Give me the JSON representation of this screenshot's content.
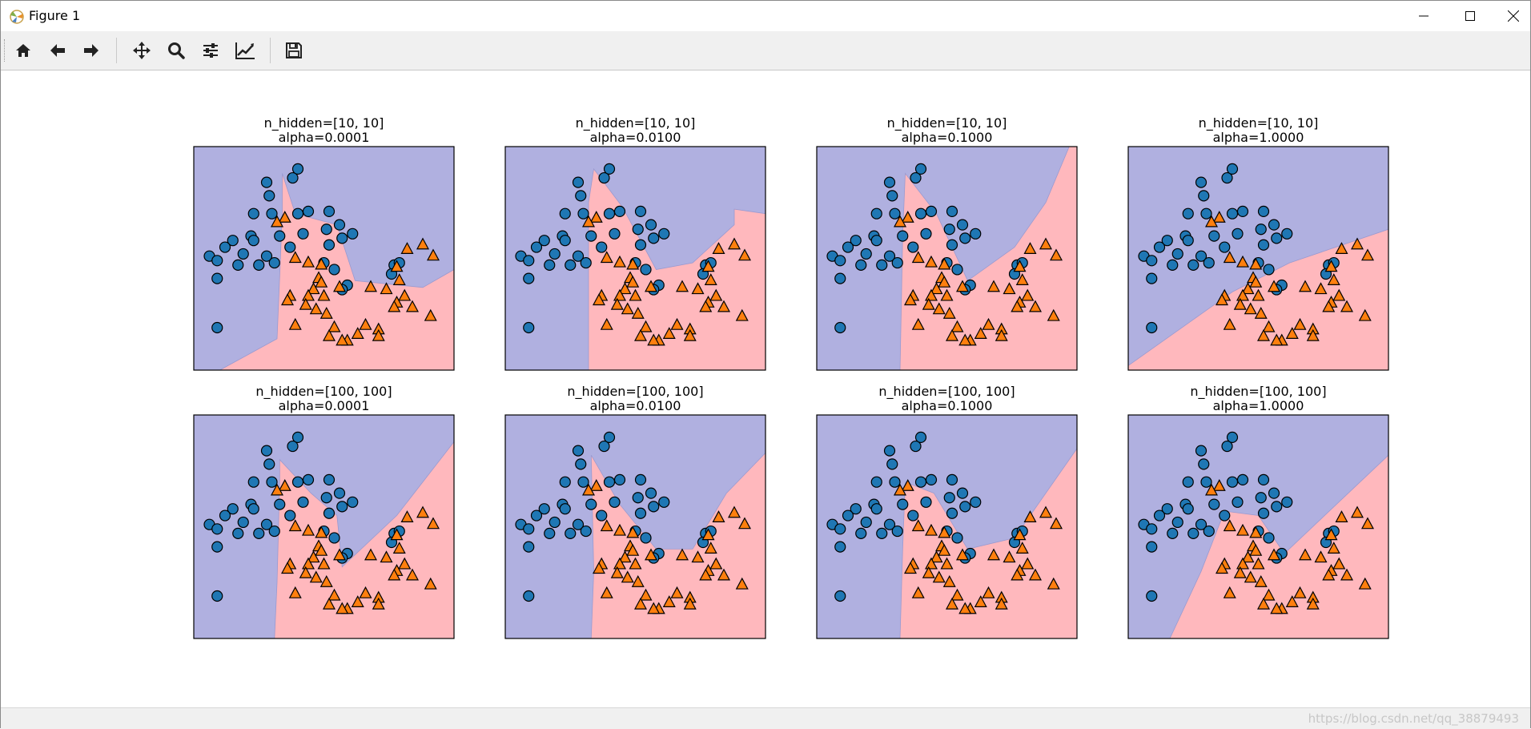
{
  "window": {
    "title": "Figure 1",
    "controls": [
      "minimize",
      "maximize",
      "close"
    ]
  },
  "toolbar": {
    "buttons": [
      {
        "name": "home-icon",
        "action": "Home"
      },
      {
        "name": "back-icon",
        "action": "Back"
      },
      {
        "name": "forward-icon",
        "action": "Forward"
      },
      {
        "name": "pan-icon",
        "action": "Pan"
      },
      {
        "name": "zoom-icon",
        "action": "Zoom"
      },
      {
        "name": "configure-subplots-icon",
        "action": "Subplots"
      },
      {
        "name": "edit-axis-icon",
        "action": "Customize"
      },
      {
        "name": "save-icon",
        "action": "Save"
      }
    ]
  },
  "status": {
    "watermark": "https://blog.csdn.net/qq_38879493"
  },
  "colors": {
    "class0_region": "#b0b0e0",
    "class1_region": "#ffb8bd",
    "class0_marker": "#1f77b4",
    "class1_marker": "#ff7f0e"
  },
  "chart_data": {
    "type": "scatter",
    "subplots": [
      {
        "title1": "n_hidden=[10, 10]",
        "title2": "alpha=0.0001",
        "boundary": [
          [
            0.1,
            1.0
          ],
          [
            0.32,
            0.86
          ],
          [
            0.33,
            0.58
          ],
          [
            0.34,
            0.3
          ],
          [
            0.34,
            0.12
          ],
          [
            0.39,
            0.3
          ],
          [
            0.55,
            0.35
          ],
          [
            0.62,
            0.6
          ],
          [
            0.88,
            0.63
          ],
          [
            1.0,
            0.55
          ]
        ]
      },
      {
        "title1": "n_hidden=[10, 10]",
        "title2": "alpha=0.0100",
        "boundary": [
          [
            0.32,
            1.0
          ],
          [
            0.32,
            0.55
          ],
          [
            0.32,
            0.25
          ],
          [
            0.34,
            0.1
          ],
          [
            0.45,
            0.27
          ],
          [
            0.58,
            0.55
          ],
          [
            0.72,
            0.52
          ],
          [
            0.88,
            0.35
          ],
          [
            0.88,
            0.28
          ],
          [
            1.0,
            0.3
          ]
        ]
      },
      {
        "title1": "n_hidden=[10, 10]",
        "title2": "alpha=0.1000",
        "boundary": [
          [
            0.32,
            1.0
          ],
          [
            0.33,
            0.4
          ],
          [
            0.34,
            0.12
          ],
          [
            0.46,
            0.3
          ],
          [
            0.58,
            0.6
          ],
          [
            0.76,
            0.45
          ],
          [
            0.88,
            0.25
          ],
          [
            0.97,
            0.0
          ]
        ]
      },
      {
        "title1": "n_hidden=[10, 10]",
        "title2": "alpha=1.0000",
        "boundary": [
          [
            0.0,
            0.98
          ],
          [
            0.4,
            0.65
          ],
          [
            0.62,
            0.52
          ],
          [
            1.0,
            0.37
          ]
        ]
      },
      {
        "title1": "n_hidden=[100, 100]",
        "title2": "alpha=0.0001",
        "boundary": [
          [
            0.31,
            1.0
          ],
          [
            0.32,
            0.75
          ],
          [
            0.33,
            0.3
          ],
          [
            0.33,
            0.2
          ],
          [
            0.45,
            0.35
          ],
          [
            0.55,
            0.45
          ],
          [
            0.57,
            0.68
          ],
          [
            0.78,
            0.45
          ],
          [
            1.0,
            0.12
          ]
        ]
      },
      {
        "title1": "n_hidden=[100, 100]",
        "title2": "alpha=0.0100",
        "boundary": [
          [
            0.33,
            1.0
          ],
          [
            0.34,
            0.7
          ],
          [
            0.33,
            0.18
          ],
          [
            0.44,
            0.4
          ],
          [
            0.58,
            0.6
          ],
          [
            0.72,
            0.6
          ],
          [
            0.85,
            0.35
          ],
          [
            1.0,
            0.17
          ]
        ]
      },
      {
        "title1": "n_hidden=[100, 100]",
        "title2": "alpha=0.1000",
        "boundary": [
          [
            0.32,
            1.0
          ],
          [
            0.33,
            0.6
          ],
          [
            0.34,
            0.3
          ],
          [
            0.45,
            0.35
          ],
          [
            0.58,
            0.6
          ],
          [
            0.76,
            0.55
          ],
          [
            1.0,
            0.15
          ]
        ]
      },
      {
        "title1": "n_hidden=[100, 100]",
        "title2": "alpha=1.0000",
        "boundary": [
          [
            0.16,
            1.0
          ],
          [
            0.28,
            0.7
          ],
          [
            0.37,
            0.43
          ],
          [
            0.5,
            0.45
          ],
          [
            0.6,
            0.62
          ],
          [
            1.0,
            0.18
          ]
        ]
      }
    ],
    "class0_points": [
      [
        0.28,
        0.16
      ],
      [
        0.38,
        0.14
      ],
      [
        0.4,
        0.1
      ],
      [
        0.29,
        0.22
      ],
      [
        0.23,
        0.3
      ],
      [
        0.3,
        0.3
      ],
      [
        0.4,
        0.3
      ],
      [
        0.44,
        0.29
      ],
      [
        0.52,
        0.29
      ],
      [
        0.56,
        0.35
      ],
      [
        0.42,
        0.39
      ],
      [
        0.51,
        0.37
      ],
      [
        0.33,
        0.4
      ],
      [
        0.22,
        0.4
      ],
      [
        0.23,
        0.42
      ],
      [
        0.15,
        0.42
      ],
      [
        0.12,
        0.45
      ],
      [
        0.19,
        0.48
      ],
      [
        0.28,
        0.49
      ],
      [
        0.37,
        0.45
      ],
      [
        0.06,
        0.49
      ],
      [
        0.09,
        0.51
      ],
      [
        0.17,
        0.53
      ],
      [
        0.25,
        0.53
      ],
      [
        0.31,
        0.52
      ],
      [
        0.57,
        0.41
      ],
      [
        0.61,
        0.39
      ],
      [
        0.52,
        0.44
      ],
      [
        0.5,
        0.52
      ],
      [
        0.54,
        0.55
      ],
      [
        0.77,
        0.53
      ],
      [
        0.79,
        0.52
      ],
      [
        0.76,
        0.57
      ],
      [
        0.59,
        0.62
      ],
      [
        0.57,
        0.64
      ],
      [
        0.09,
        0.81
      ],
      [
        0.09,
        0.59
      ]
    ],
    "class1_points": [
      [
        0.35,
        0.32
      ],
      [
        0.32,
        0.34
      ],
      [
        0.39,
        0.5
      ],
      [
        0.44,
        0.52
      ],
      [
        0.49,
        0.53
      ],
      [
        0.82,
        0.46
      ],
      [
        0.88,
        0.44
      ],
      [
        0.92,
        0.49
      ],
      [
        0.78,
        0.54
      ],
      [
        0.68,
        0.63
      ],
      [
        0.74,
        0.64
      ],
      [
        0.79,
        0.6
      ],
      [
        0.48,
        0.59
      ],
      [
        0.49,
        0.61
      ],
      [
        0.46,
        0.64
      ],
      [
        0.44,
        0.67
      ],
      [
        0.5,
        0.67
      ],
      [
        0.37,
        0.67
      ],
      [
        0.36,
        0.69
      ],
      [
        0.43,
        0.71
      ],
      [
        0.56,
        0.63
      ],
      [
        0.81,
        0.67
      ],
      [
        0.78,
        0.7
      ],
      [
        0.77,
        0.72
      ],
      [
        0.84,
        0.72
      ],
      [
        0.91,
        0.76
      ],
      [
        0.39,
        0.8
      ],
      [
        0.47,
        0.73
      ],
      [
        0.51,
        0.75
      ],
      [
        0.54,
        0.81
      ],
      [
        0.66,
        0.8
      ],
      [
        0.71,
        0.82
      ],
      [
        0.63,
        0.84
      ],
      [
        0.59,
        0.87
      ],
      [
        0.52,
        0.85
      ],
      [
        0.57,
        0.87
      ],
      [
        0.71,
        0.85
      ]
    ],
    "xlim": [
      0,
      1
    ],
    "ylim": [
      0,
      1
    ],
    "ticks": "none"
  }
}
